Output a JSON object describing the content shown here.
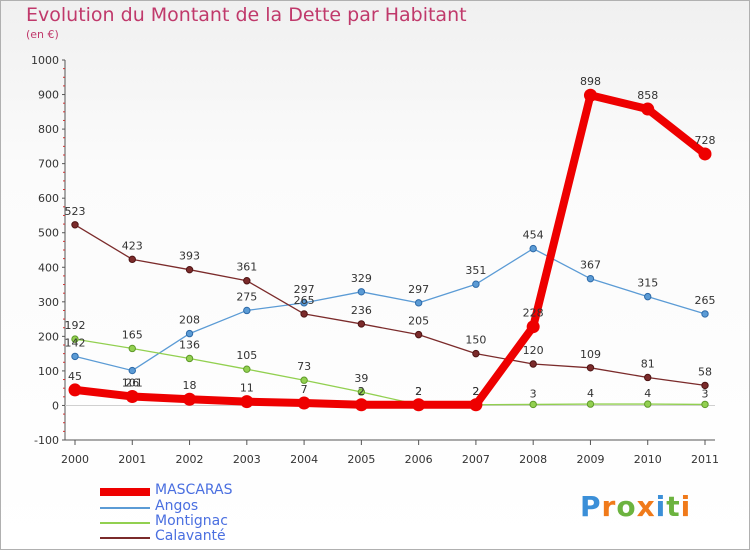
{
  "header": {
    "title": "Evolution du Montant de la Dette par Habitant",
    "subtitle": "(en €)"
  },
  "logo": {
    "letters": [
      "P",
      "r",
      "o",
      "x",
      "i",
      "t",
      "i"
    ],
    "colors": [
      "#3b8fd8",
      "#f07a1a",
      "#6cb33f",
      "#f07a1a",
      "#3b8fd8",
      "#6cb33f",
      "#f07a1a"
    ]
  },
  "chart_data": {
    "type": "line",
    "title": "Evolution du Montant de la Dette par Habitant",
    "subtitle": "(en €)",
    "xlabel": "",
    "ylabel": "",
    "x": [
      "2000",
      "2001",
      "2002",
      "2003",
      "2004",
      "2005",
      "2006",
      "2007",
      "2008",
      "2009",
      "2010",
      "2011"
    ],
    "ylim": [
      -100,
      1000
    ],
    "yticks": [
      -100,
      0,
      100,
      200,
      300,
      400,
      500,
      600,
      700,
      800,
      900,
      1000
    ],
    "grid": false,
    "legend_position": "bottom-left",
    "series": [
      {
        "name": "MASCARAS",
        "color": "#ee0000",
        "values": [
          45,
          26,
          18,
          11,
          7,
          2,
          2,
          2,
          228,
          898,
          858,
          728
        ]
      },
      {
        "name": "Angos",
        "color": "#5b9bd5",
        "values": [
          142,
          101,
          208,
          275,
          297,
          329,
          297,
          351,
          454,
          367,
          315,
          265
        ]
      },
      {
        "name": "Montignac",
        "color": "#92d050",
        "values": [
          192,
          165,
          136,
          105,
          73,
          39,
          2,
          2,
          3,
          4,
          4,
          3
        ]
      },
      {
        "name": "Calavanté",
        "color": "#7b2b2b",
        "values": [
          523,
          423,
          393,
          361,
          265,
          236,
          205,
          150,
          120,
          109,
          81,
          58
        ]
      }
    ]
  }
}
